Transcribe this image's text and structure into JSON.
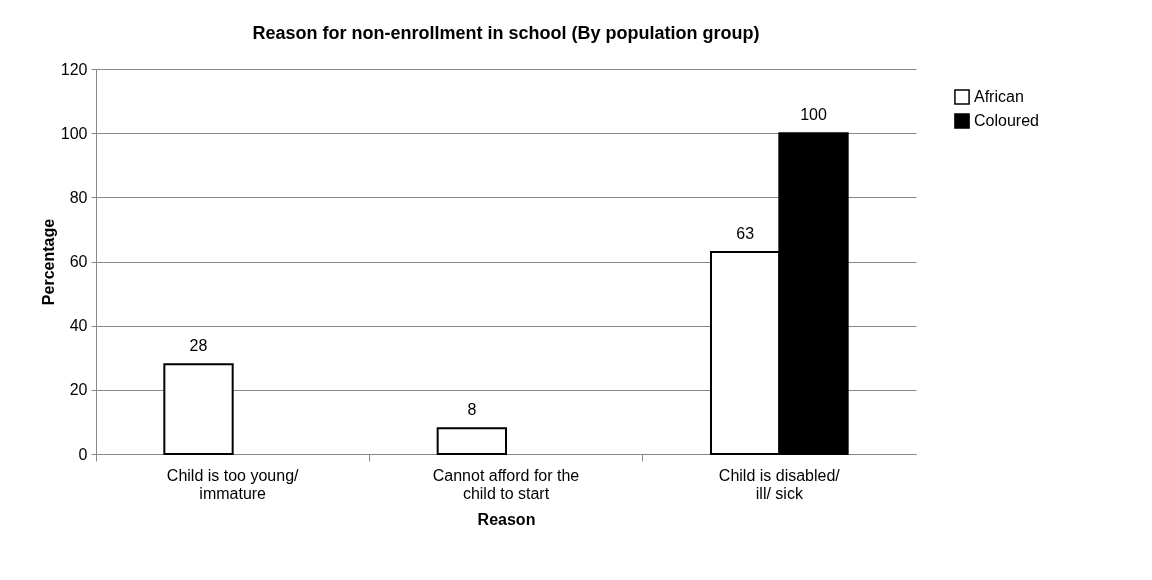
{
  "chart_data": {
    "type": "bar",
    "title": "Reason for non-enrollment in school (By population group)",
    "xlabel": "Reason",
    "ylabel": "Percentage",
    "categories": [
      "Child is too young/ immature",
      "Cannot afford for the child to start",
      "Child is disabled/ ill/ sick"
    ],
    "series": [
      {
        "name": "African",
        "color": "#ffffff",
        "values": [
          28,
          8,
          63
        ]
      },
      {
        "name": "Coloured",
        "color": "#000000",
        "values": [
          null,
          null,
          100
        ]
      }
    ],
    "ylim": [
      0,
      120
    ],
    "yticks": [
      0,
      20,
      40,
      60,
      80,
      100,
      120
    ],
    "grid": "y",
    "legend": "right",
    "data_labels": true
  }
}
